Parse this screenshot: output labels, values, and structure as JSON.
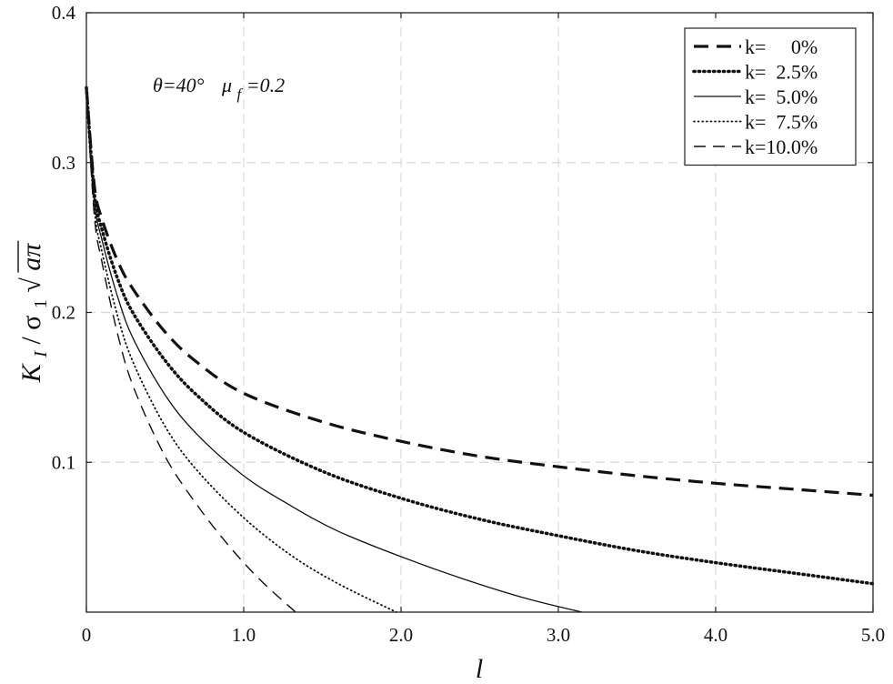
{
  "chart_data": {
    "type": "line",
    "xlabel": "l",
    "ylabel": "K_I / σ_1 √(aπ)",
    "ylabel_parts": {
      "k": "K",
      "ksub": "I",
      "slash": " / σ",
      "ssub": "1",
      "root": "aπ"
    },
    "xlim": [
      0,
      5
    ],
    "ylim": [
      0,
      0.4
    ],
    "xticks": [
      0,
      1,
      2,
      3,
      4,
      5
    ],
    "xtick_labels": [
      "0",
      "1.0",
      "2.0",
      "3.0",
      "4.0",
      "5.0"
    ],
    "yticks": [
      0.1,
      0.2,
      0.3,
      0.4
    ],
    "ytick_labels": [
      "0.1",
      "0.2",
      "0.3",
      "0.4"
    ],
    "grid": true,
    "legend_position": "top-right",
    "annotation": {
      "theta": "θ=40°",
      "mu": "μ",
      "mu_sub": "f",
      "mu_val": "=0.2"
    },
    "series": [
      {
        "name": "k= 0%",
        "legend_label": "k=     0%",
        "style": "thick-dash",
        "x": [
          0.0,
          0.05,
          0.1,
          0.2,
          0.3,
          0.5,
          0.7,
          1.0,
          1.5,
          2.0,
          2.5,
          3.0,
          3.5,
          4.0,
          4.5,
          5.0
        ],
        "y": [
          0.35,
          0.285,
          0.262,
          0.234,
          0.215,
          0.187,
          0.167,
          0.146,
          0.127,
          0.114,
          0.104,
          0.097,
          0.091,
          0.086,
          0.082,
          0.078
        ]
      },
      {
        "name": "k= 2.5%",
        "legend_label": "k=  2.5%",
        "style": "thick-dot",
        "x": [
          0.0,
          0.05,
          0.1,
          0.2,
          0.3,
          0.5,
          0.7,
          1.0,
          1.5,
          2.0,
          2.5,
          3.0,
          3.5,
          4.0,
          4.5,
          5.0
        ],
        "y": [
          0.35,
          0.28,
          0.255,
          0.222,
          0.199,
          0.168,
          0.145,
          0.12,
          0.094,
          0.076,
          0.062,
          0.051,
          0.041,
          0.033,
          0.026,
          0.019
        ]
      },
      {
        "name": "k= 5.0%",
        "legend_label": "k=  5.0%",
        "style": "solid",
        "x": [
          0.0,
          0.05,
          0.1,
          0.2,
          0.3,
          0.5,
          0.7,
          1.0,
          1.3,
          1.6,
          2.0,
          2.4,
          2.8,
          3.15
        ],
        "y": [
          0.35,
          0.275,
          0.248,
          0.21,
          0.182,
          0.145,
          0.119,
          0.091,
          0.071,
          0.054,
          0.037,
          0.022,
          0.009,
          0.0
        ]
      },
      {
        "name": "k= 7.5%",
        "legend_label": "k=  7.5%",
        "style": "thin-dot",
        "x": [
          0.0,
          0.05,
          0.1,
          0.2,
          0.3,
          0.5,
          0.7,
          1.0,
          1.3,
          1.6,
          1.97
        ],
        "y": [
          0.35,
          0.27,
          0.24,
          0.197,
          0.166,
          0.124,
          0.095,
          0.063,
          0.038,
          0.019,
          0.0
        ]
      },
      {
        "name": "k=10.0%",
        "legend_label": "k=10.0%",
        "style": "thin-dash",
        "x": [
          0.0,
          0.05,
          0.1,
          0.2,
          0.3,
          0.5,
          0.7,
          0.9,
          1.1,
          1.33
        ],
        "y": [
          0.35,
          0.265,
          0.233,
          0.185,
          0.15,
          0.104,
          0.072,
          0.045,
          0.022,
          0.0
        ]
      }
    ]
  }
}
